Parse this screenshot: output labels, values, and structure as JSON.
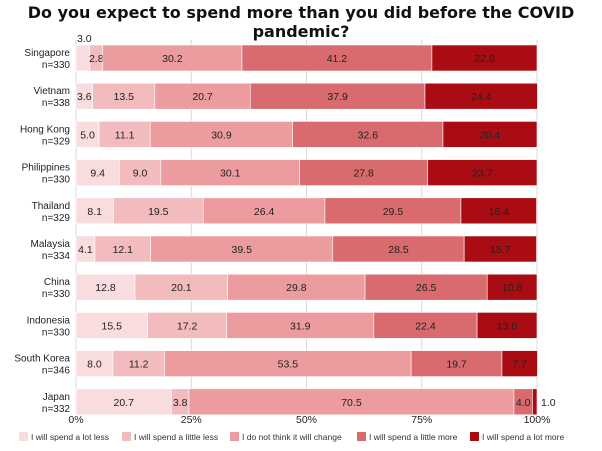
{
  "chart_data": {
    "type": "bar",
    "orientation": "horizontal-stacked-100",
    "title": "Do you expect to spend more than you did before the COVID pandemic?",
    "categories": [
      {
        "country": "Singapore",
        "n": "n=330"
      },
      {
        "country": "Vietnam",
        "n": "n=338"
      },
      {
        "country": "Hong Kong",
        "n": "n=329"
      },
      {
        "country": "Philippines",
        "n": "n=330"
      },
      {
        "country": "Thailand",
        "n": "n=329"
      },
      {
        "country": "Malaysia",
        "n": "n=334"
      },
      {
        "country": "China",
        "n": "n=330"
      },
      {
        "country": "Indonesia",
        "n": "n=330"
      },
      {
        "country": "South Korea",
        "n": "n=346"
      },
      {
        "country": "Japan",
        "n": "n=332"
      }
    ],
    "series": [
      {
        "name": "I will spend a lot less",
        "color": "#f9dcdd",
        "values": [
          3.0,
          3.6,
          5.0,
          9.4,
          8.1,
          4.1,
          12.8,
          15.5,
          8.0,
          20.7
        ]
      },
      {
        "name": "I will spend a little less",
        "color": "#f2bcbe",
        "values": [
          2.8,
          13.5,
          11.1,
          9.0,
          19.5,
          12.1,
          20.1,
          17.2,
          11.2,
          3.8
        ]
      },
      {
        "name": "I do not think it will change",
        "color": "#ec9c9e",
        "values": [
          30.2,
          20.7,
          30.9,
          30.1,
          26.4,
          39.5,
          29.8,
          31.9,
          53.5,
          70.5
        ]
      },
      {
        "name": "I will spend a little more",
        "color": "#d96a6e",
        "values": [
          41.2,
          37.9,
          32.6,
          27.8,
          29.5,
          28.5,
          26.5,
          22.4,
          19.7,
          4.0
        ]
      },
      {
        "name": "I will spend a lot more",
        "color": "#a90c12",
        "values": [
          22.8,
          24.4,
          20.4,
          23.7,
          16.4,
          15.7,
          10.8,
          13.0,
          7.7,
          1.0
        ]
      }
    ],
    "x_ticks": [
      "0%",
      "25%",
      "50%",
      "75%",
      "100%"
    ],
    "xlim": [
      0,
      100
    ],
    "grid": true,
    "legend": "bottom",
    "label_color_dark": "#222222",
    "label_color_light": "#ffffff"
  }
}
